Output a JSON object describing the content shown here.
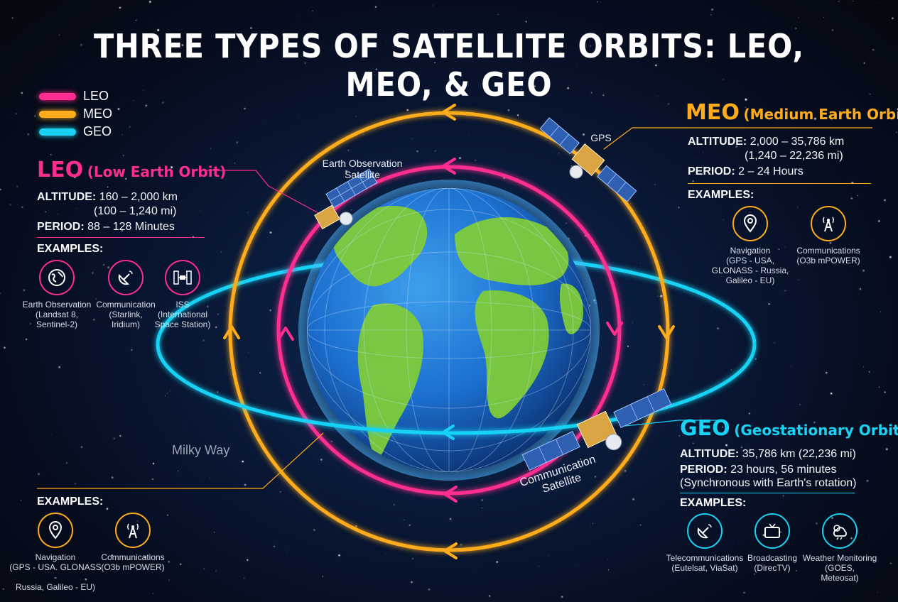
{
  "title": "THREE TYPES OF SATELLITE ORBITS: LEO, MEO, & GEO",
  "colors": {
    "leo": "#ff2d8f",
    "meo": "#ffac1c",
    "geo": "#19d3f5",
    "background": "#060d1f",
    "earth_ocean": "#1c6fcf",
    "earth_land": "#7ecb3a"
  },
  "legend": [
    {
      "label": "LEO",
      "color": "#ff2d8f"
    },
    {
      "label": "MEO",
      "color": "#ffac1c"
    },
    {
      "label": "GEO",
      "color": "#19d3f5"
    }
  ],
  "leo": {
    "abbr": "LEO",
    "full": "(Low Earth Orbit)",
    "altitude_label": "ALTITUDE:",
    "altitude_value": "160 – 2,000 km",
    "altitude_alt": "(100 – 1,240 mi)",
    "period_label": "PERIOD:",
    "period_value": "88 – 128 Minutes",
    "examples_title": "EXAMPLES:",
    "examples": [
      {
        "icon": "globe-icon",
        "caption": "Earth Observation\n(Landsat 8,\nSentinel-2)"
      },
      {
        "icon": "satellite-dish-icon",
        "caption": "Communication\n(Starlink,\nIridium)"
      },
      {
        "icon": "space-station-icon",
        "caption": "ISS\n(International\nSpace Station)"
      }
    ]
  },
  "meo": {
    "abbr": "MEO",
    "full": "(Medium Earth Orbit)",
    "altitude_label": "ALTITUDE:",
    "altitude_value": "2,000 – 35,786 km",
    "altitude_alt": "(1,240 – 22,236 mi)",
    "period_label": "PERIOD:",
    "period_value": "2 – 24 Hours",
    "examples_title": "EXAMPLES:",
    "examples": [
      {
        "icon": "location-pin-icon",
        "caption": "Navigation\n(GPS - USA,\nGLONASS - Russia,\nGalileo - EU)"
      },
      {
        "icon": "antenna-tower-icon",
        "caption": "Communications\n(O3b mPOWER)"
      }
    ]
  },
  "geo": {
    "abbr": "GEO",
    "full": "(Geostationary Orbit)",
    "altitude_label": "ALTITUDE:",
    "altitude_value": "35,786 km (22,236 mi)",
    "period_label": "PERIOD:",
    "period_value": "23 hours, 56 minutes",
    "period_note": "(Synchronous with Earth's rotation)",
    "examples_title": "EXAMPLES:",
    "examples": [
      {
        "icon": "satellite-dish-icon",
        "caption": "Telecommunications\n(Eutelsat, ViaSat)"
      },
      {
        "icon": "tv-icon",
        "caption": "Broadcasting\n(DirecTV)"
      },
      {
        "icon": "weather-icon",
        "caption": "Weather Monitoring\n(GOES,\nMeteosat)"
      }
    ]
  },
  "meo_lower": {
    "examples_title": "EXAMPLES:",
    "examples": [
      {
        "icon": "location-pin-icon",
        "caption": "Navigation\n(GPS - USA. GLONASS -\nRussia, Galileo - EU)"
      },
      {
        "icon": "antenna-tower-icon",
        "caption": "Communications\n(O3b mPOWER)"
      }
    ]
  },
  "satellite_labels": {
    "earth_observation": "Earth Observation\nSatellite",
    "gps": "GPS",
    "communication": "Communication\nSatellite"
  },
  "milky_way": "Milky Way"
}
